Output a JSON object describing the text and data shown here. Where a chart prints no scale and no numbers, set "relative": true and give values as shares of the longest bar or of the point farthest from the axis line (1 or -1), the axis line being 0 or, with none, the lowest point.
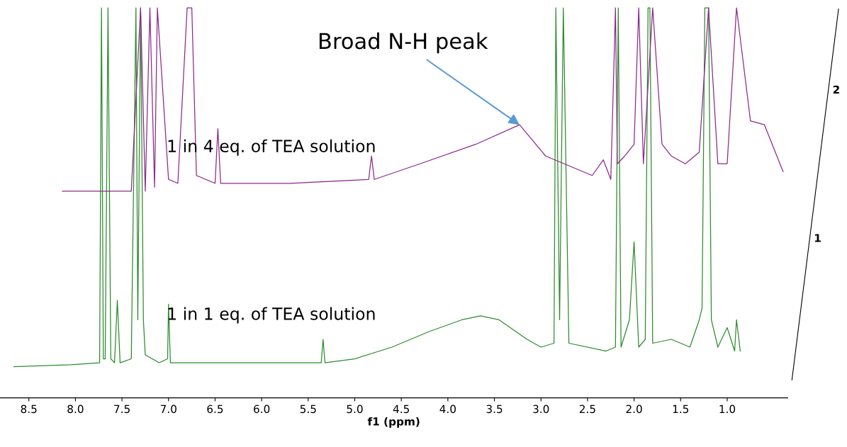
{
  "chart_data": {
    "type": "line",
    "relative": true,
    "xlabel": "f1 (ppm)",
    "xlim": [
      8.81,
      0.35
    ],
    "xticks": [
      8.5,
      {
        "value": 8,
        "label": "8.0"
      },
      7.5,
      {
        "value": 7,
        "label": "7.0"
      },
      6.5,
      {
        "value": 6,
        "label": "6.0"
      },
      5.5,
      {
        "value": 5,
        "label": "5.0"
      },
      4.5,
      {
        "value": 4,
        "label": "4.0"
      },
      3.5,
      {
        "value": 3,
        "label": "3.0"
      },
      2.5,
      {
        "value": 2,
        "label": "2.0"
      },
      1.5,
      {
        "value": 1,
        "label": "1.0"
      }
    ],
    "grid": false,
    "legend": false,
    "marker": "none",
    "line_style": "solid",
    "tick_labels": "x",
    "series": [
      {
        "name": "1 in 1 eq. of TEA solution",
        "color": "#2e8b2e",
        "x": [
          8.66,
          8.05,
          7.74,
          7.72,
          7.7,
          7.68,
          7.65,
          7.62,
          7.58,
          7.55,
          7.52,
          7.4,
          7.35,
          7.33,
          7.3,
          7.27,
          7.25,
          7.1,
          7.01,
          7.0,
          6.98,
          6.5,
          5.9,
          5.36,
          5.34,
          5.32,
          5.0,
          4.6,
          4.2,
          3.85,
          3.65,
          3.45,
          3.15,
          3.0,
          2.86,
          2.84,
          2.8,
          2.76,
          2.7,
          2.3,
          2.2,
          2.17,
          2.14,
          2.05,
          2.0,
          1.95,
          1.88,
          1.85,
          1.83,
          1.8,
          1.6,
          1.4,
          1.3,
          1.27,
          1.24,
          1.2,
          1.17,
          1.1,
          1.0,
          0.92,
          0.9,
          0.86
        ],
        "values": [
          0.08,
          0.085,
          0.09,
          1.0,
          0.1,
          0.1,
          1.0,
          0.1,
          0.09,
          0.25,
          0.09,
          0.1,
          1.0,
          0.2,
          1.0,
          0.2,
          0.11,
          0.09,
          0.1,
          0.24,
          0.09,
          0.09,
          0.09,
          0.09,
          0.15,
          0.09,
          0.1,
          0.13,
          0.17,
          0.2,
          0.21,
          0.2,
          0.15,
          0.13,
          0.14,
          1.0,
          0.2,
          1.0,
          0.14,
          0.12,
          0.13,
          1.0,
          0.13,
          0.2,
          0.4,
          0.13,
          0.15,
          1.0,
          1.0,
          0.14,
          0.15,
          0.13,
          0.2,
          0.23,
          1.0,
          1.0,
          0.2,
          0.13,
          0.18,
          0.12,
          0.2,
          0.12
        ]
      },
      {
        "name": "1 in 4 eq. of TEA solution",
        "color": "#8b2a8b",
        "x": [
          8.14,
          7.8,
          7.4,
          7.3,
          7.25,
          7.2,
          7.15,
          7.12,
          7.0,
          6.9,
          6.8,
          6.75,
          6.7,
          6.5,
          6.47,
          6.44,
          6.2,
          5.7,
          4.85,
          4.82,
          4.79,
          4.3,
          3.7,
          3.23,
          2.95,
          2.45,
          2.33,
          2.25,
          2.2,
          2.18,
          2.1,
          2.0,
          1.95,
          1.9,
          1.8,
          1.7,
          1.6,
          1.45,
          1.3,
          1.2,
          1.1,
          1.0,
          0.9,
          0.75,
          0.6,
          0.45,
          0.4
        ],
        "values": [
          0.53,
          0.53,
          0.53,
          1.0,
          0.53,
          1.0,
          0.54,
          1.0,
          0.56,
          0.55,
          1.0,
          1.0,
          0.57,
          0.55,
          0.69,
          0.55,
          0.55,
          0.55,
          0.56,
          0.62,
          0.56,
          0.6,
          0.65,
          0.7,
          0.62,
          0.57,
          0.61,
          0.56,
          1.0,
          0.6,
          0.62,
          0.65,
          1.0,
          0.6,
          1.0,
          0.65,
          0.62,
          0.6,
          0.63,
          1.0,
          0.6,
          0.6,
          1.0,
          0.71,
          0.7,
          0.61,
          0.58
        ]
      }
    ],
    "annotations": [
      {
        "text": "Broad N-H peak",
        "x": 3.23,
        "y": 0.7
      },
      "1",
      "2"
    ]
  }
}
